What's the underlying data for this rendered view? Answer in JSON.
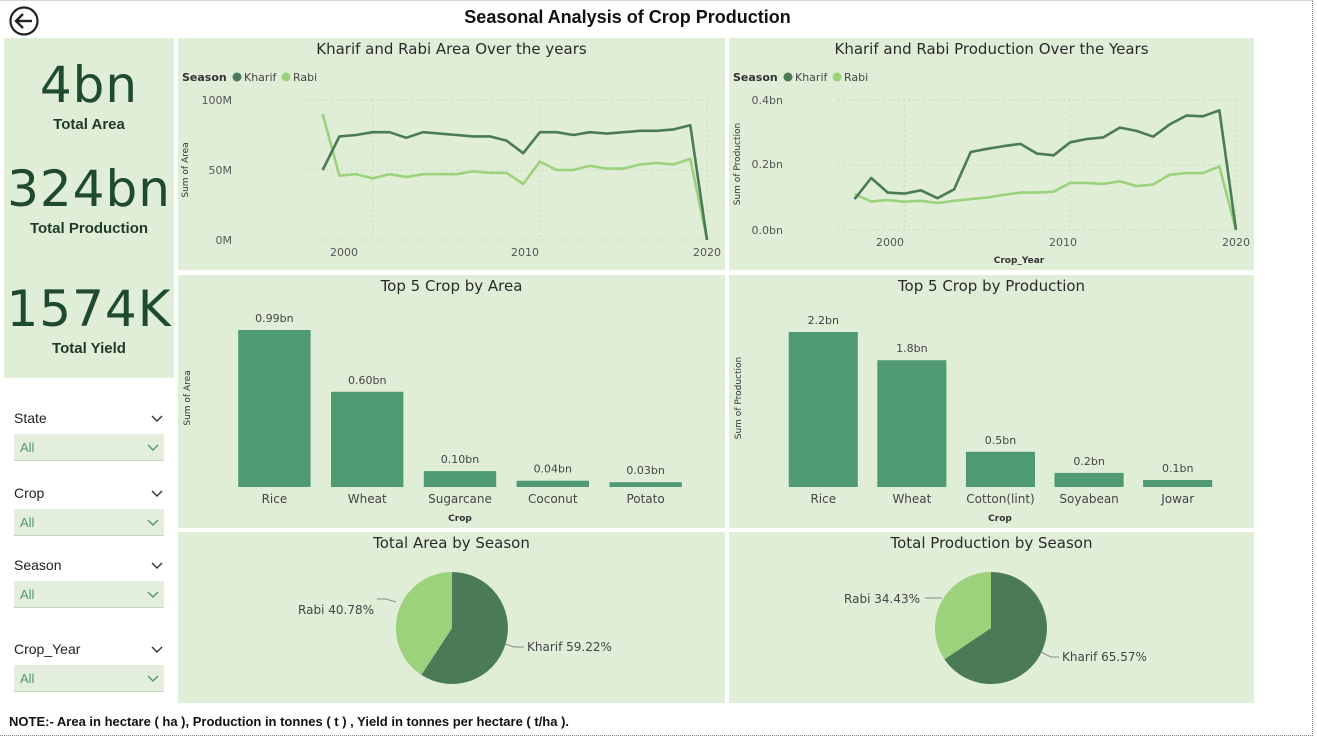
{
  "page": {
    "title": "Seasonal Analysis of Crop Production",
    "note": "NOTE:- Area in hectare ( ha ), Production in tonnes ( t ) , Yield in tonnes per hectare ( t/ha )."
  },
  "colors": {
    "kharif": "#4a7a56",
    "rabi": "#9bd27b",
    "bar": "#509a72",
    "panel": "#e0eed8"
  },
  "kpis": [
    {
      "value": "4bn",
      "label": "Total Area"
    },
    {
      "value": "324bn",
      "label": "Total Production"
    },
    {
      "value": "1574K",
      "label": "Total Yield"
    }
  ],
  "slicers": [
    {
      "label": "State",
      "value": "All"
    },
    {
      "label": "Crop",
      "value": "All"
    },
    {
      "label": "Season",
      "value": "All"
    },
    {
      "label": "Crop_Year",
      "value": "All"
    }
  ],
  "icons": {
    "back": "back-arrow-icon",
    "chevron": "chevron-down-icon"
  },
  "charts": {
    "area_years": {
      "title": "Kharif and Rabi Area Over the years",
      "legend_title": "Season",
      "ylabel": "Sum of Area",
      "xlabel": "",
      "y_ticks": [
        "100M",
        "50M",
        "0M"
      ],
      "x_ticks": [
        "2000",
        "2010",
        "2020"
      ]
    },
    "prod_years": {
      "title": "Kharif and Rabi Production Over the Years",
      "legend_title": "Season",
      "ylabel": "Sum of Production",
      "xlabel": "Crop_Year",
      "y_ticks": [
        "0.4bn",
        "0.2bn",
        "0.0bn"
      ],
      "x_ticks": [
        "2000",
        "2010",
        "2020"
      ]
    },
    "top_area": {
      "title": "Top 5 Crop by Area",
      "ylabel": "Sum of Area",
      "xlabel": "Crop"
    },
    "top_prod": {
      "title": "Top 5 Crop by Production",
      "ylabel": "Sum of Production",
      "xlabel": "Crop"
    },
    "area_season": {
      "title": "Total Area by Season"
    },
    "prod_season": {
      "title": "Total Production by Season"
    }
  },
  "chart_data": [
    {
      "type": "line",
      "title": "Kharif and Rabi Area Over the years",
      "ylabel": "Sum of Area",
      "xlabel": "",
      "xlim": [
        1996,
        2020
      ],
      "ylim": [
        0,
        100000000
      ],
      "grid": true,
      "legend": "top-left",
      "x": [
        1997,
        1998,
        1999,
        2000,
        2001,
        2002,
        2003,
        2004,
        2005,
        2006,
        2007,
        2008,
        2009,
        2010,
        2011,
        2012,
        2013,
        2014,
        2015,
        2016,
        2017,
        2018,
        2019,
        2020
      ],
      "series": [
        {
          "name": "Kharif",
          "values": [
            50000000,
            74000000,
            75000000,
            77000000,
            77000000,
            73000000,
            77000000,
            76000000,
            75000000,
            74000000,
            74000000,
            71000000,
            62000000,
            77000000,
            77000000,
            75000000,
            77000000,
            76000000,
            77000000,
            78000000,
            78000000,
            79000000,
            82000000,
            0
          ]
        },
        {
          "name": "Rabi",
          "values": [
            90000000,
            46000000,
            47000000,
            44000000,
            47000000,
            45000000,
            47000000,
            47000000,
            47000000,
            49000000,
            48000000,
            48000000,
            40000000,
            56000000,
            50000000,
            50000000,
            53000000,
            51000000,
            51000000,
            54000000,
            55000000,
            54000000,
            58000000,
            0
          ]
        }
      ]
    },
    {
      "type": "line",
      "title": "Kharif and Rabi Production Over the Years",
      "ylabel": "Sum of Production",
      "xlabel": "Crop_Year",
      "xlim": [
        1996,
        2020
      ],
      "ylim": [
        0,
        0.4
      ],
      "grid": true,
      "legend": "top-left",
      "x": [
        1997,
        1998,
        1999,
        2000,
        2001,
        2002,
        2003,
        2004,
        2005,
        2006,
        2007,
        2008,
        2009,
        2010,
        2011,
        2012,
        2013,
        2014,
        2015,
        2016,
        2017,
        2018,
        2019,
        2020
      ],
      "series": [
        {
          "name": "Kharif",
          "values": [
            0.095,
            0.16,
            0.115,
            0.112,
            0.122,
            0.098,
            0.125,
            0.24,
            0.25,
            0.258,
            0.265,
            0.235,
            0.23,
            0.27,
            0.28,
            0.285,
            0.315,
            0.305,
            0.287,
            0.325,
            0.352,
            0.35,
            0.368,
            0
          ]
        },
        {
          "name": "Rabi",
          "values": [
            0.11,
            0.088,
            0.092,
            0.087,
            0.09,
            0.083,
            0.09,
            0.095,
            0.1,
            0.108,
            0.115,
            0.115,
            0.118,
            0.145,
            0.145,
            0.142,
            0.15,
            0.135,
            0.14,
            0.17,
            0.175,
            0.175,
            0.195,
            0
          ]
        }
      ]
    },
    {
      "type": "bar",
      "title": "Top 5 Crop by Area",
      "ylabel": "Sum of Area",
      "xlabel": "Crop",
      "categories": [
        "Rice",
        "Wheat",
        "Sugarcane",
        "Coconut",
        "Potato"
      ],
      "values": [
        0.99,
        0.6,
        0.1,
        0.04,
        0.03
      ],
      "labels": [
        "0.99bn",
        "0.60bn",
        "0.10bn",
        "0.04bn",
        "0.03bn"
      ],
      "ylim": [
        0,
        0.99
      ]
    },
    {
      "type": "bar",
      "title": "Top 5 Crop by Production",
      "ylabel": "Sum of Production",
      "xlabel": "Crop",
      "categories": [
        "Rice",
        "Wheat",
        "Cotton(lint)",
        "Soyabean",
        "Jowar"
      ],
      "values": [
        2.2,
        1.8,
        0.5,
        0.2,
        0.1
      ],
      "labels": [
        "2.2bn",
        "1.8bn",
        "0.5bn",
        "0.2bn",
        "0.1bn"
      ],
      "ylim": [
        0,
        2.2
      ]
    },
    {
      "type": "pie",
      "title": "Total Area by Season",
      "categories": [
        "Kharif",
        "Rabi"
      ],
      "values": [
        59.22,
        40.78
      ],
      "labels": [
        "Kharif 59.22%",
        "Rabi 40.78%"
      ]
    },
    {
      "type": "pie",
      "title": "Total Production by Season",
      "categories": [
        "Kharif",
        "Rabi"
      ],
      "values": [
        65.57,
        34.43
      ],
      "labels": [
        "Kharif 65.57%",
        "Rabi 34.43%"
      ]
    }
  ]
}
